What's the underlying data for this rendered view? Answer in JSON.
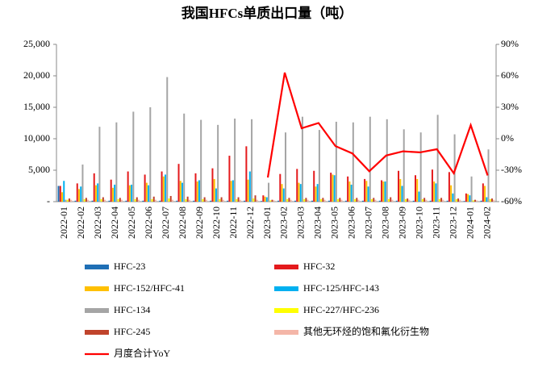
{
  "chart_data": {
    "type": "bar",
    "title": "我国HFCs单质出口量（吨）",
    "categories": [
      "2022-01",
      "2022-02",
      "2022-03",
      "2022-04",
      "2022-05",
      "2022-06",
      "2022-07",
      "2022-08",
      "2022-09",
      "2022-10",
      "2022-11",
      "2022-12",
      "2023-01",
      "2023-02",
      "2023-03",
      "2023-04",
      "2023-05",
      "2023-06",
      "2023-07",
      "2023-08",
      "2023-09",
      "2023-10",
      "2023-11",
      "2023-12",
      "2024-01",
      "2024-02"
    ],
    "series": [
      {
        "name": "HFC-23",
        "color": "#1f6fb5",
        "values": [
          2500,
          150,
          150,
          150,
          150,
          150,
          150,
          150,
          150,
          150,
          150,
          150,
          100,
          150,
          150,
          150,
          150,
          150,
          150,
          150,
          150,
          150,
          150,
          150,
          100,
          150
        ]
      },
      {
        "name": "HFC-32",
        "color": "#e41a1c",
        "values": [
          2500,
          2900,
          4500,
          3500,
          4800,
          4300,
          4800,
          6000,
          4500,
          5300,
          7300,
          8800,
          1000,
          4400,
          5200,
          4900,
          4600,
          4000,
          3600,
          3400,
          4900,
          4200,
          5100,
          4700,
          1300,
          2900
        ]
      },
      {
        "name": "HFC-152/HFC-41",
        "color": "#ffc000",
        "values": [
          1500,
          2000,
          2600,
          2200,
          2600,
          3000,
          4000,
          3300,
          3200,
          3600,
          3300,
          3500,
          800,
          2800,
          3000,
          2400,
          4300,
          3200,
          3300,
          3200,
          3600,
          3600,
          3200,
          2600,
          1200,
          2500
        ]
      },
      {
        "name": "HFC-125/HFC-143",
        "color": "#00b0f0",
        "values": [
          3300,
          2400,
          2900,
          2700,
          2700,
          2600,
          4300,
          3000,
          3400,
          2100,
          3400,
          4800,
          700,
          2100,
          2800,
          2800,
          4200,
          2700,
          2400,
          3200,
          2500,
          1600,
          2900,
          1300,
          1000,
          700
        ]
      },
      {
        "name": "HFC-134",
        "color": "#a5a5a5",
        "values": [
          300,
          5900,
          11900,
          12600,
          14300,
          15000,
          19800,
          14000,
          13000,
          12200,
          13200,
          13100,
          3000,
          11000,
          13500,
          11400,
          12700,
          12600,
          13500,
          13100,
          11500,
          11000,
          13800,
          10700,
          4000,
          8300
        ]
      },
      {
        "name": "HFC-227/HFC-236",
        "color": "#ffff00",
        "values": [
          300,
          400,
          400,
          400,
          400,
          400,
          500,
          400,
          400,
          400,
          400,
          500,
          200,
          400,
          400,
          400,
          400,
          400,
          400,
          400,
          400,
          400,
          400,
          400,
          200,
          400
        ]
      },
      {
        "name": "HFC-245",
        "color": "#c0442c",
        "values": [
          500,
          600,
          700,
          600,
          700,
          800,
          900,
          800,
          700,
          700,
          700,
          1000,
          300,
          600,
          600,
          600,
          600,
          600,
          600,
          700,
          500,
          600,
          600,
          500,
          300,
          500
        ]
      },
      {
        "name": "其他无环烃的饱和氟化衍生物",
        "color": "#f4b6a8",
        "values": [
          300,
          300,
          300,
          300,
          300,
          300,
          300,
          300,
          300,
          300,
          300,
          300,
          200,
          300,
          300,
          300,
          300,
          300,
          300,
          300,
          300,
          300,
          300,
          300,
          200,
          300
        ]
      },
      {
        "name": "月度合计YoY",
        "color": "#ff0000",
        "type": "line",
        "axis": "y2",
        "values": [
          null,
          null,
          null,
          null,
          null,
          null,
          null,
          null,
          null,
          null,
          null,
          null,
          -37,
          63,
          10,
          15,
          -7,
          -14,
          -31,
          -16,
          -12,
          -13,
          -10,
          -33,
          13,
          -35
        ]
      }
    ],
    "ylim": [
      0,
      25000
    ],
    "yticks": [
      {
        "value": 0,
        "label": "-"
      },
      {
        "value": 5000,
        "label": "5,000"
      },
      {
        "value": 10000,
        "label": "10,000"
      },
      {
        "value": 15000,
        "label": "15,000"
      },
      {
        "value": 20000,
        "label": "20,000"
      },
      {
        "value": 25000,
        "label": "25,000"
      }
    ],
    "y2lim": [
      -60,
      90
    ],
    "y2ticks": [
      {
        "value": -60,
        "label": "-60%"
      },
      {
        "value": -30,
        "label": "-30%"
      },
      {
        "value": 0,
        "label": "0%"
      },
      {
        "value": 30,
        "label": "30%"
      },
      {
        "value": 60,
        "label": "60%"
      },
      {
        "value": 90,
        "label": "90%"
      }
    ],
    "grid": false
  }
}
